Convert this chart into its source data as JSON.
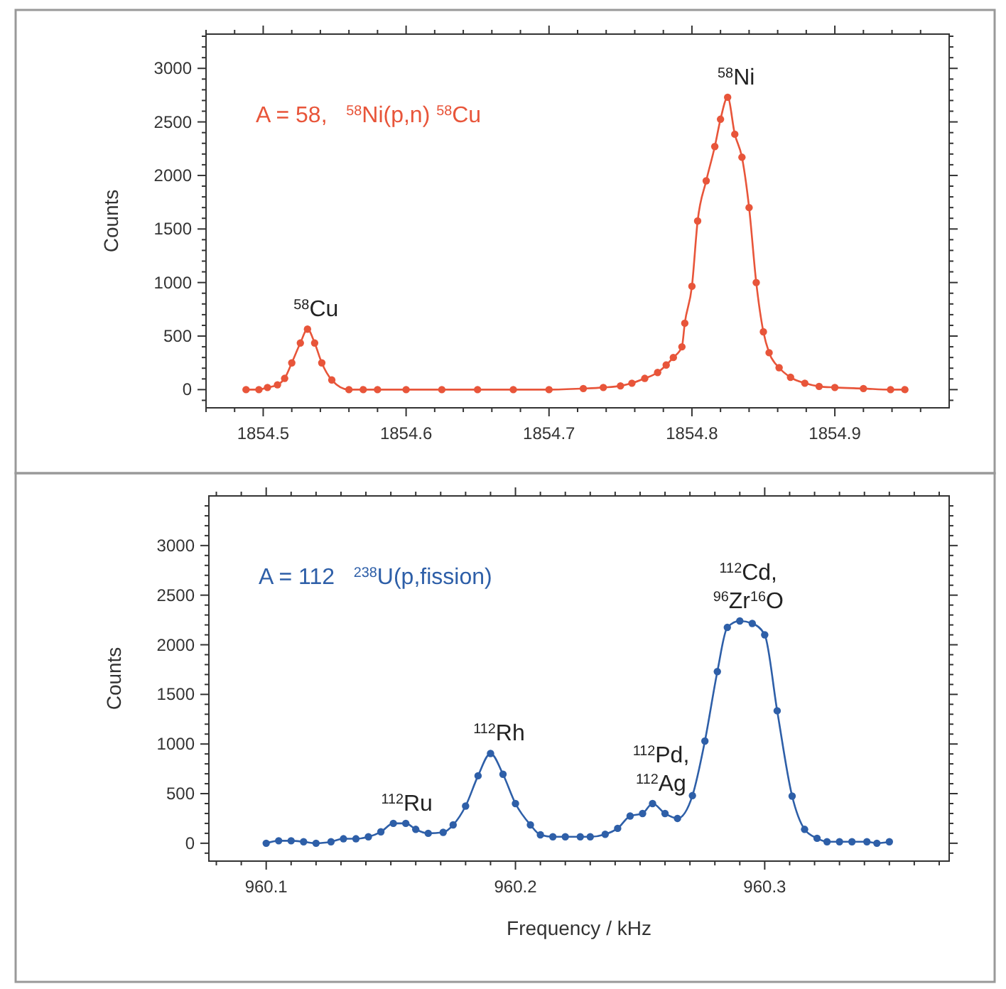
{
  "chart_data": [
    {
      "type": "line",
      "ylabel": "Counts",
      "marker": "circle",
      "xlim": [
        1854.46,
        1854.98
      ],
      "ylim": [
        -170,
        3320
      ],
      "xticks": [
        {
          "value": 1854.46,
          "label": null
        },
        {
          "value": 1854.48,
          "label": null
        },
        1854.5,
        {
          "value": 1854.52,
          "label": null
        },
        {
          "value": 1854.54,
          "label": null
        },
        {
          "value": 1854.56,
          "label": null
        },
        {
          "value": 1854.58,
          "label": null
        },
        1854.6,
        {
          "value": 1854.62,
          "label": null
        },
        {
          "value": 1854.64,
          "label": null
        },
        {
          "value": 1854.66,
          "label": null
        },
        {
          "value": 1854.68,
          "label": null
        },
        1854.7,
        {
          "value": 1854.72,
          "label": null
        },
        {
          "value": 1854.74,
          "label": null
        },
        {
          "value": 1854.76,
          "label": null
        },
        {
          "value": 1854.78,
          "label": null
        },
        1854.8,
        {
          "value": 1854.82,
          "label": null
        },
        {
          "value": 1854.84,
          "label": null
        },
        {
          "value": 1854.86,
          "label": null
        },
        {
          "value": 1854.88,
          "label": null
        },
        1854.9,
        {
          "value": 1854.92,
          "label": null
        },
        {
          "value": 1854.94,
          "label": null
        },
        {
          "value": 1854.96,
          "label": null
        }
      ],
      "yticks": [
        {
          "value": -100,
          "label": null
        },
        0,
        {
          "value": 100,
          "label": null
        },
        {
          "value": 200,
          "label": null
        },
        {
          "value": 300,
          "label": null
        },
        {
          "value": 400,
          "label": null
        },
        500,
        {
          "value": 600,
          "label": null
        },
        {
          "value": 700,
          "label": null
        },
        {
          "value": 800,
          "label": null
        },
        {
          "value": 900,
          "label": null
        },
        1000,
        {
          "value": 1100,
          "label": null
        },
        {
          "value": 1200,
          "label": null
        },
        {
          "value": 1300,
          "label": null
        },
        {
          "value": 1400,
          "label": null
        },
        1500,
        {
          "value": 1600,
          "label": null
        },
        {
          "value": 1700,
          "label": null
        },
        {
          "value": 1800,
          "label": null
        },
        {
          "value": 1900,
          "label": null
        },
        2000,
        {
          "value": 2100,
          "label": null
        },
        {
          "value": 2200,
          "label": null
        },
        {
          "value": 2300,
          "label": null
        },
        {
          "value": 2400,
          "label": null
        },
        2500,
        {
          "value": 2600,
          "label": null
        },
        {
          "value": 2700,
          "label": null
        },
        {
          "value": 2800,
          "label": null
        },
        {
          "value": 2900,
          "label": null
        },
        3000,
        {
          "value": 3100,
          "label": null
        },
        {
          "value": 3200,
          "label": null
        },
        {
          "value": 3300,
          "label": null
        }
      ],
      "series": [
        {
          "name": "A = 58,   $^{58}$Ni(p,n) $^{58}$Cu",
          "color": "#e8553a",
          "x": [
            1854.488,
            1854.497,
            1854.503,
            1854.51,
            1854.515,
            1854.52,
            1854.526,
            1854.531,
            1854.536,
            1854.541,
            1854.548,
            1854.56,
            1854.57,
            1854.58,
            1854.6,
            1854.625,
            1854.65,
            1854.675,
            1854.7,
            1854.724,
            1854.738,
            1854.75,
            1854.758,
            1854.767,
            1854.776,
            1854.782,
            1854.787,
            1854.793,
            1854.795,
            1854.8,
            1854.804,
            1854.81,
            1854.816,
            1854.82,
            1854.825,
            1854.83,
            1854.835,
            1854.84,
            1854.845,
            1854.85,
            1854.854,
            1854.861,
            1854.869,
            1854.879,
            1854.889,
            1854.9,
            1854.92,
            1854.939,
            1854.949
          ],
          "values": [
            0,
            0,
            20,
            45,
            105,
            250,
            435,
            565,
            435,
            250,
            90,
            0,
            0,
            0,
            0,
            0,
            0,
            0,
            0,
            10,
            20,
            35,
            60,
            105,
            160,
            230,
            300,
            400,
            620,
            965,
            1575,
            1950,
            2270,
            2525,
            2730,
            2385,
            2170,
            1700,
            1000,
            540,
            345,
            205,
            115,
            60,
            30,
            20,
            10,
            0,
            0
          ]
        }
      ],
      "annotations": [
        {
          "text": "$^{58}$Cu",
          "x": 1854.531,
          "y": 565
        },
        {
          "text": "$^{58}$Ni",
          "x": 1854.825,
          "y": 2730
        }
      ]
    },
    {
      "type": "line",
      "ylabel": "Counts",
      "xlabel": "Frequency / kHz",
      "marker": "circle",
      "xlim": [
        960.077,
        960.374
      ],
      "ylim": [
        -180,
        3500
      ],
      "xticks": [
        {
          "value": 960.08,
          "label": null
        },
        {
          "value": 960.09,
          "label": null
        },
        960.1,
        {
          "value": 960.11,
          "label": null
        },
        {
          "value": 960.12,
          "label": null
        },
        {
          "value": 960.13,
          "label": null
        },
        {
          "value": 960.14,
          "label": null
        },
        {
          "value": 960.15,
          "label": null
        },
        {
          "value": 960.16,
          "label": null
        },
        {
          "value": 960.17,
          "label": null
        },
        {
          "value": 960.18,
          "label": null
        },
        {
          "value": 960.19,
          "label": null
        },
        960.2,
        {
          "value": 960.21,
          "label": null
        },
        {
          "value": 960.22,
          "label": null
        },
        {
          "value": 960.23,
          "label": null
        },
        {
          "value": 960.24,
          "label": null
        },
        {
          "value": 960.25,
          "label": null
        },
        {
          "value": 960.26,
          "label": null
        },
        {
          "value": 960.27,
          "label": null
        },
        {
          "value": 960.28,
          "label": null
        },
        {
          "value": 960.29,
          "label": null
        },
        960.3,
        {
          "value": 960.31,
          "label": null
        },
        {
          "value": 960.32,
          "label": null
        },
        {
          "value": 960.33,
          "label": null
        },
        {
          "value": 960.34,
          "label": null
        },
        {
          "value": 960.35,
          "label": null
        },
        {
          "value": 960.36,
          "label": null
        },
        {
          "value": 960.37,
          "label": null
        }
      ],
      "yticks": [
        {
          "value": -100,
          "label": null
        },
        0,
        {
          "value": 100,
          "label": null
        },
        {
          "value": 200,
          "label": null
        },
        {
          "value": 300,
          "label": null
        },
        {
          "value": 400,
          "label": null
        },
        500,
        {
          "value": 600,
          "label": null
        },
        {
          "value": 700,
          "label": null
        },
        {
          "value": 800,
          "label": null
        },
        {
          "value": 900,
          "label": null
        },
        1000,
        {
          "value": 1100,
          "label": null
        },
        {
          "value": 1200,
          "label": null
        },
        {
          "value": 1300,
          "label": null
        },
        {
          "value": 1400,
          "label": null
        },
        1500,
        {
          "value": 1600,
          "label": null
        },
        {
          "value": 1700,
          "label": null
        },
        {
          "value": 1800,
          "label": null
        },
        {
          "value": 1900,
          "label": null
        },
        2000,
        {
          "value": 2100,
          "label": null
        },
        {
          "value": 2200,
          "label": null
        },
        {
          "value": 2300,
          "label": null
        },
        {
          "value": 2400,
          "label": null
        },
        2500,
        {
          "value": 2600,
          "label": null
        },
        {
          "value": 2700,
          "label": null
        },
        {
          "value": 2800,
          "label": null
        },
        {
          "value": 2900,
          "label": null
        },
        3000,
        {
          "value": 3100,
          "label": null
        },
        {
          "value": 3200,
          "label": null
        },
        {
          "value": 3300,
          "label": null
        },
        {
          "value": 3400,
          "label": null
        }
      ],
      "series": [
        {
          "name": "A = 112   $^{238}$U(p,fission)",
          "color": "#2e5fa8",
          "x": [
            960.1,
            960.105,
            960.11,
            960.115,
            960.12,
            960.126,
            960.131,
            960.136,
            960.141,
            960.146,
            960.151,
            960.156,
            960.16,
            960.165,
            960.171,
            960.175,
            960.18,
            960.185,
            960.19,
            960.195,
            960.2,
            960.206,
            960.21,
            960.215,
            960.22,
            960.226,
            960.23,
            960.236,
            960.241,
            960.246,
            960.251,
            960.255,
            960.26,
            960.265,
            960.271,
            960.276,
            960.281,
            960.285,
            960.29,
            960.295,
            960.3,
            960.305,
            960.311,
            960.316,
            960.321,
            960.325,
            960.33,
            960.335,
            960.341,
            960.345,
            960.35
          ],
          "values": [
            0,
            25,
            25,
            15,
            0,
            15,
            45,
            45,
            65,
            115,
            200,
            200,
            140,
            100,
            110,
            185,
            375,
            680,
            905,
            695,
            400,
            185,
            85,
            65,
            65,
            65,
            65,
            90,
            150,
            275,
            300,
            400,
            300,
            250,
            480,
            1030,
            1730,
            2175,
            2240,
            2215,
            2100,
            1335,
            475,
            140,
            50,
            15,
            15,
            15,
            15,
            0,
            15
          ]
        }
      ],
      "annotations": [
        {
          "text": "$^{112}$Ru",
          "x": 960.153,
          "y": 200
        },
        {
          "text": "$^{112}$Rh",
          "x": 960.19,
          "y": 905
        },
        {
          "text": "$^{112}$Pd,\n$^{112}$Ag",
          "x": 960.255,
          "y": 400
        },
        {
          "text": "$^{112}$Cd,\n$^{96}$Zr$^{16}$O",
          "x": 960.29,
          "y": 2240
        }
      ]
    }
  ]
}
